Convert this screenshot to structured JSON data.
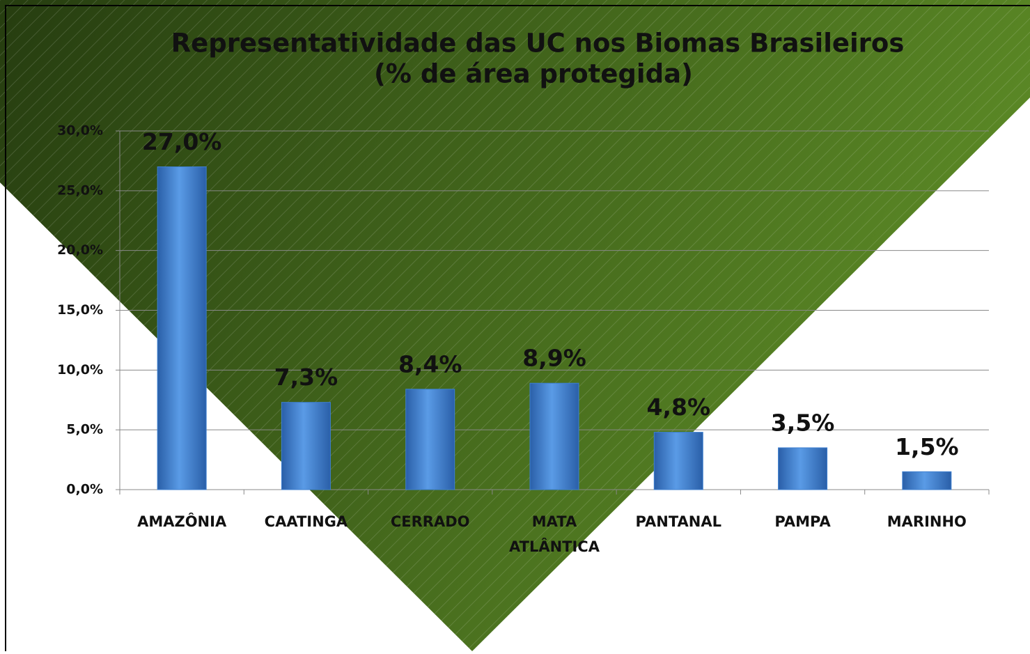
{
  "chart_data": {
    "type": "bar",
    "title": "Representatividade das UC nos Biomas Brasileiros",
    "subtitle": "(% de área protegida)",
    "categories": [
      "AMAZÔNIA",
      "CAATINGA",
      "CERRADO",
      "MATA ATLÂNTICA",
      "PANTANAL",
      "PAMPA",
      "MARINHO"
    ],
    "values": [
      27.0,
      7.3,
      8.4,
      8.9,
      4.8,
      3.5,
      1.5
    ],
    "value_labels": [
      "27,0%",
      "7,3%",
      "8,4%",
      "8,9%",
      "4,8%",
      "3,5%",
      "1,5%"
    ],
    "color": "#3d7fd0",
    "ylim": [
      0,
      30
    ],
    "yticks": [
      {
        "value": 0,
        "label": "0,0%"
      },
      {
        "value": 5,
        "label": "5,0%"
      },
      {
        "value": 10,
        "label": "10,0%"
      },
      {
        "value": 15,
        "label": "15,0%"
      },
      {
        "value": 20,
        "label": "20,0%"
      },
      {
        "value": 25,
        "label": "25,0%"
      },
      {
        "value": 30,
        "label": "30,0%"
      }
    ],
    "grid": true
  }
}
